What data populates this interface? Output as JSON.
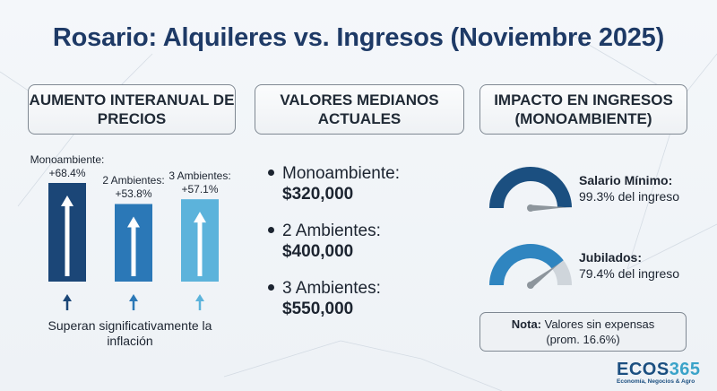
{
  "title": "Rosario: Alquileres vs. Ingresos (Noviembre 2025)",
  "panels": {
    "left_header": "Aumento interanual de precios",
    "middle_header": "Valores medianos actuales",
    "right_header": "Impacto en ingresos (monoambiente)"
  },
  "left_footnote": "Superan significativamente la inflación",
  "valores": [
    {
      "name": "Monoambiente:",
      "price": "$320,000"
    },
    {
      "name": "2 Ambientes:",
      "price": "$400,000"
    },
    {
      "name": "3 Ambientes:",
      "price": "$550,000"
    }
  ],
  "gauges": [
    {
      "title": "Salario Mínimo:",
      "text": "99.3% del ingreso",
      "value": 99.3,
      "color": "#1b4f80"
    },
    {
      "title": "Jubilados:",
      "text": "79.4% del ingreso",
      "value": 79.4,
      "color": "#2f85c0"
    }
  ],
  "nota": {
    "bold": "Nota:",
    "text": " Valores sin expensas",
    "line2": "(prom. 16.6%)"
  },
  "logo": {
    "main_a": "ECOS",
    "main_b": "365",
    "sub": "Economía, Negocios & Agro"
  },
  "chart_data": {
    "type": "bar",
    "title": "Aumento interanual de precios",
    "categories": [
      "Monoambiente:",
      "2 Ambientes:",
      "3 Ambientes:"
    ],
    "values": [
      68.4,
      53.8,
      57.1
    ],
    "value_labels": [
      "+68.4%",
      "+53.8%",
      "+57.1%"
    ],
    "unit": "%",
    "colors": [
      "#1b4677",
      "#2b78b7",
      "#5cb3db"
    ],
    "grid": false
  }
}
